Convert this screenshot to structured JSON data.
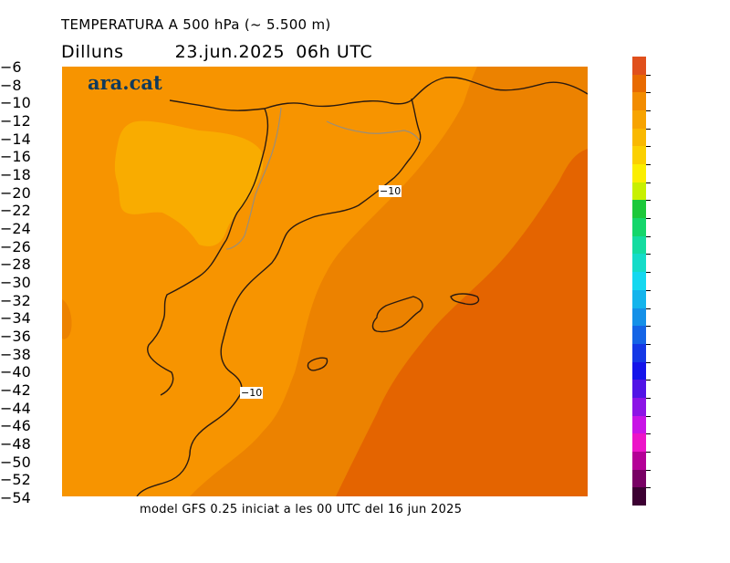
{
  "title": {
    "line1": "TEMPERATURA A 500 hPa (~ 5.500 m)",
    "day": "Dilluns",
    "date": "23.jun.2025",
    "hour": "06h UTC"
  },
  "logo": "ara.cat",
  "footer": "model GFS 0.25 iniciat a les 00 UTC del 16 jun 2025",
  "contour_labels": [
    "−10",
    "−10"
  ],
  "legend": {
    "labels": [
      "−6",
      "−8",
      "−10",
      "−12",
      "−14",
      "−16",
      "−18",
      "−20",
      "−22",
      "−24",
      "−26",
      "−28",
      "−30",
      "−32",
      "−34",
      "−36",
      "−38",
      "−40",
      "−42",
      "−44",
      "−46",
      "−48",
      "−50",
      "−52",
      "−54"
    ],
    "colors": [
      "#e0501c",
      "#e86a00",
      "#f28c00",
      "#f7a300",
      "#f9b800",
      "#fbd000",
      "#fbee00",
      "#c8f000",
      "#1cc83a",
      "#14d66a",
      "#14dca0",
      "#14dcc8",
      "#14d8f0",
      "#14b4ec",
      "#1490e8",
      "#1464e6",
      "#1438e6",
      "#1414ea",
      "#5014e6",
      "#8c14e6",
      "#c814e6",
      "#ec14c8",
      "#b40096",
      "#780064",
      "#3c0032"
    ]
  },
  "fields": {
    "zone_colors": {
      "minus12": "#f79400",
      "minus14": "#f9ac00",
      "minus10": "#ec8200",
      "minus8": "#e46400"
    }
  }
}
